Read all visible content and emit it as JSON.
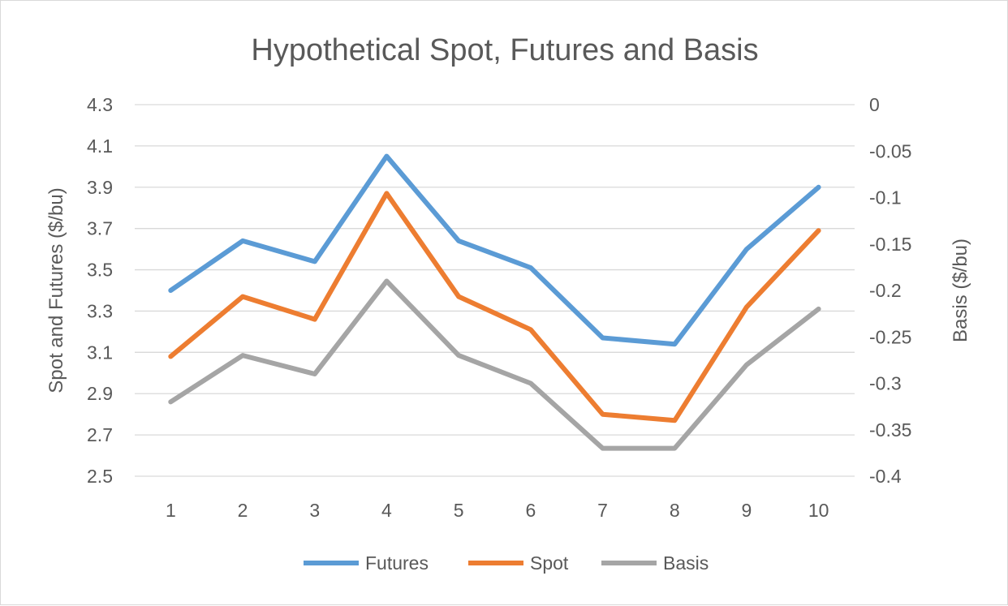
{
  "chart_data": {
    "type": "line",
    "title": "Hypothetical Spot, Futures and Basis",
    "xlabel": "",
    "ylabel": "Spot and Futures ($/bu)",
    "y2label": "Basis ($/bu)",
    "categories": [
      "1",
      "2",
      "3",
      "4",
      "5",
      "6",
      "7",
      "8",
      "9",
      "10"
    ],
    "ylim": [
      2.5,
      4.3
    ],
    "y_ticks": [
      "2.5",
      "2.7",
      "2.9",
      "3.1",
      "3.3",
      "3.5",
      "3.7",
      "3.9",
      "4.1",
      "4.3"
    ],
    "y2lim": [
      -0.4,
      0
    ],
    "y2_ticks": [
      "-0.4",
      "-0.35",
      "-0.3",
      "-0.25",
      "-0.2",
      "-0.15",
      "-0.1",
      "-0.05",
      "0"
    ],
    "grid": true,
    "legend_position": "bottom",
    "series": [
      {
        "name": "Futures",
        "axis": "left",
        "color": "#5b9bd5",
        "values": [
          3.4,
          3.64,
          3.54,
          4.05,
          3.64,
          3.51,
          3.17,
          3.14,
          3.6,
          3.9
        ]
      },
      {
        "name": "Spot",
        "axis": "left",
        "color": "#ed7d31",
        "values": [
          3.08,
          3.37,
          3.26,
          3.87,
          3.37,
          3.21,
          2.8,
          2.77,
          3.32,
          3.69
        ]
      },
      {
        "name": "Basis",
        "axis": "right",
        "color": "#a5a5a5",
        "values": [
          -0.32,
          -0.27,
          -0.29,
          -0.19,
          -0.27,
          -0.3,
          -0.37,
          -0.37,
          -0.28,
          -0.22
        ]
      }
    ]
  }
}
